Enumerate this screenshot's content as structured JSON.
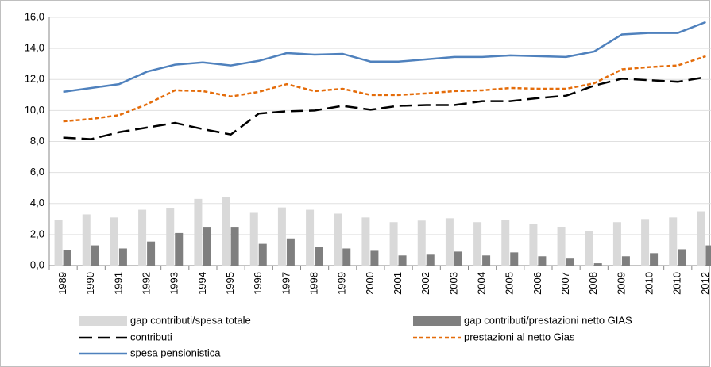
{
  "chart_data": {
    "type": "combo",
    "categories": [
      "1989",
      "1990",
      "1991",
      "1992",
      "1993",
      "1994",
      "1995",
      "1996",
      "1997",
      "1998",
      "1999",
      "2000",
      "2001",
      "2002",
      "2003",
      "2004",
      "2005",
      "2006",
      "2007",
      "2008",
      "2009",
      "2010",
      "2010",
      "2012"
    ],
    "ylim": [
      0,
      16
    ],
    "yticks": [
      {
        "value": 0,
        "label": "0,0"
      },
      {
        "value": 2,
        "label": "2,0"
      },
      {
        "value": 4,
        "label": "4,0"
      },
      {
        "value": 6,
        "label": "6,0"
      },
      {
        "value": 8,
        "label": "8,0"
      },
      {
        "value": 10,
        "label": "10,0"
      },
      {
        "value": 12,
        "label": "12,0"
      },
      {
        "value": 14,
        "label": "14,0"
      },
      {
        "value": 16,
        "label": "16,0"
      }
    ],
    "grid": true,
    "series": [
      {
        "name": "gap contributi/spesa totale",
        "type": "bar",
        "color": "#d9d9d9",
        "values": [
          2.95,
          3.3,
          3.1,
          3.6,
          3.7,
          4.3,
          4.4,
          3.4,
          3.75,
          3.6,
          3.35,
          3.1,
          2.8,
          2.9,
          3.05,
          2.8,
          2.95,
          2.7,
          2.5,
          2.2,
          2.8,
          3.0,
          3.1,
          3.5
        ]
      },
      {
        "name": "gap contributi/prestazioni netto GIAS",
        "type": "bar",
        "color": "#7f7f7f",
        "values": [
          1.0,
          1.3,
          1.1,
          1.55,
          2.1,
          2.45,
          2.45,
          1.4,
          1.75,
          1.2,
          1.1,
          0.95,
          0.65,
          0.7,
          0.9,
          0.65,
          0.85,
          0.6,
          0.45,
          0.15,
          0.6,
          0.8,
          1.05,
          1.3
        ]
      },
      {
        "name": "contributi",
        "type": "line",
        "color": "#000000",
        "dash": "long",
        "values": [
          8.25,
          8.15,
          8.6,
          8.9,
          9.2,
          8.8,
          8.45,
          9.8,
          9.95,
          10.0,
          10.3,
          10.05,
          10.3,
          10.35,
          10.35,
          10.6,
          10.6,
          10.8,
          10.95,
          11.6,
          12.05,
          11.95,
          11.85,
          12.15
        ]
      },
      {
        "name": "prestazioni al netto Gias",
        "type": "line",
        "color": "#e46c0a",
        "dash": "short",
        "values": [
          9.3,
          9.45,
          9.7,
          10.4,
          11.3,
          11.25,
          10.9,
          11.2,
          11.7,
          11.25,
          11.4,
          11.0,
          11.0,
          11.1,
          11.25,
          11.3,
          11.45,
          11.4,
          11.4,
          11.75,
          12.65,
          12.8,
          12.9,
          13.5
        ]
      },
      {
        "name": "spesa pensionistica",
        "type": "line",
        "color": "#4f81bd",
        "values": [
          11.2,
          11.45,
          11.7,
          12.5,
          12.95,
          13.1,
          12.9,
          13.2,
          13.7,
          13.6,
          13.65,
          13.15,
          13.15,
          13.3,
          13.45,
          13.45,
          13.55,
          13.5,
          13.45,
          13.8,
          14.9,
          15.0,
          15.0,
          15.7
        ]
      }
    ]
  }
}
